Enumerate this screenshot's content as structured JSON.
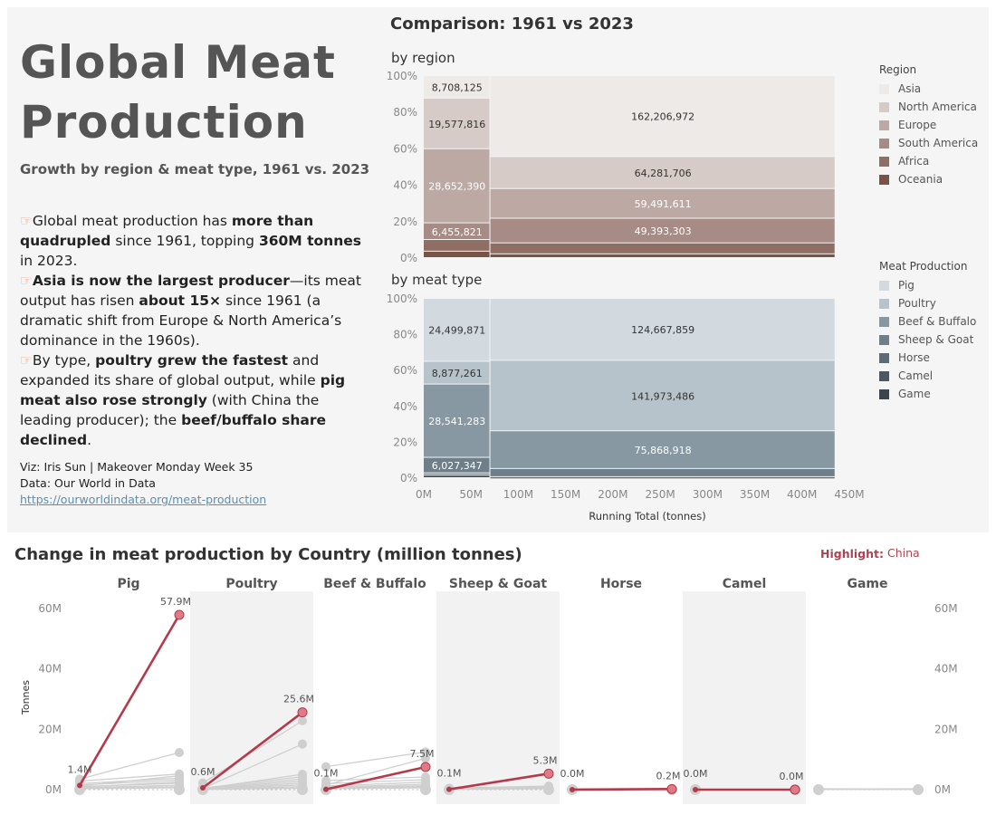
{
  "header": {
    "title": "Global Meat Production",
    "subtitle": "Growth by region & meat type, 1961 vs. 2023"
  },
  "narrative": {
    "p1": {
      "a": "Global meat production has ",
      "b": "more than quadrupled",
      "c": " since 1961, topping ",
      "d": "360M tonnes",
      "e": " in 2023."
    },
    "p2": {
      "a": "Asia is now the largest producer",
      "b": "—its meat output has risen ",
      "c": "about 15×",
      "d": " since 1961 (a dramatic shift from Europe & North America’s dominance in the 1960s)."
    },
    "p3": {
      "a": "By type, ",
      "b": "poultry grew the fastest",
      "c": " and expanded its share of global output, while ",
      "d": "pig meat also rose strongly",
      "e": " (with China the leading producer); the ",
      "f": "beef/buffalo share declined",
      "g": "."
    }
  },
  "credits": {
    "viz": "Viz: Iris Sun | Makeover Monday Week 35",
    "data": "Data: Our World in Data",
    "link": "https://ourworldindata.org/meat-production"
  },
  "comparison": {
    "title": "Comparison: 1961 vs 2023",
    "region_title": "by region",
    "meat_title": "by meat type",
    "x_label": "Running Total (tonnes)",
    "x_ticks": [
      "0M",
      "50M",
      "100M",
      "150M",
      "200M",
      "250M",
      "300M",
      "350M",
      "400M",
      "450M"
    ],
    "y_ticks": [
      "0%",
      "20%",
      "40%",
      "60%",
      "80%",
      "100%"
    ]
  },
  "legend_region": {
    "title": "Region",
    "items": [
      {
        "label": "Asia",
        "color": "#eeeae7"
      },
      {
        "label": "North America",
        "color": "#d7cbc7"
      },
      {
        "label": "Europe",
        "color": "#bda9a3"
      },
      {
        "label": "South America",
        "color": "#a68c84"
      },
      {
        "label": "Africa",
        "color": "#8f6e64"
      },
      {
        "label": "Oceania",
        "color": "#785448"
      }
    ]
  },
  "legend_meat": {
    "title": "Meat Production",
    "items": [
      {
        "label": "Pig",
        "color": "#d2dadf"
      },
      {
        "label": "Poultry",
        "color": "#b6c3cb"
      },
      {
        "label": "Beef & Buffalo",
        "color": "#8798a2"
      },
      {
        "label": "Sheep & Goat",
        "color": "#6e7f89"
      },
      {
        "label": "Horse",
        "color": "#5c6b75"
      },
      {
        "label": "Camel",
        "color": "#4b5861"
      },
      {
        "label": "Game",
        "color": "#3a454c"
      }
    ]
  },
  "bottom": {
    "title": "Change in meat production by Country (million tonnes)",
    "highlight_label": "Highlight:",
    "highlight_value": "China",
    "y_label": "Tonnes",
    "y_ticks": [
      "0M",
      "20M",
      "40M",
      "60M"
    ],
    "colors": {
      "highlight": "#b5394a",
      "other": "#cfcfcf",
      "panel_shade": "#f2f2f2"
    }
  },
  "chart_data": [
    {
      "type": "bar",
      "subtype": "marimekko",
      "title": "by region",
      "x_unit": "tonnes",
      "x_range": [
        0,
        450000000
      ],
      "y_range": [
        0,
        1
      ],
      "columns": [
        {
          "label": "1961",
          "total": 70400000,
          "segments": [
            {
              "name": "Asia",
              "value": 8708125,
              "label": "8,708,125"
            },
            {
              "name": "North America",
              "value": 19577816,
              "label": "19,577,816"
            },
            {
              "name": "Europe",
              "value": 28652390,
              "label": "28,652,390"
            },
            {
              "name": "South America",
              "value": 6455821,
              "label": "6,455,821"
            },
            {
              "name": "Africa",
              "value": 4500000,
              "label": ""
            },
            {
              "name": "Oceania",
              "value": 2500000,
              "label": ""
            }
          ]
        },
        {
          "label": "2023",
          "total": 365000000,
          "segments": [
            {
              "name": "Asia",
              "value": 162206972,
              "label": "162,206,972"
            },
            {
              "name": "North America",
              "value": 64281706,
              "label": "64,281,706"
            },
            {
              "name": "Europe",
              "value": 59491611,
              "label": "59,491,611"
            },
            {
              "name": "South America",
              "value": 49393303,
              "label": "49,393,303"
            },
            {
              "name": "Africa",
              "value": 22000000,
              "label": ""
            },
            {
              "name": "Oceania",
              "value": 7600000,
              "label": ""
            }
          ]
        }
      ]
    },
    {
      "type": "bar",
      "subtype": "marimekko",
      "title": "by meat type",
      "x_unit": "tonnes",
      "x_range": [
        0,
        450000000
      ],
      "y_range": [
        0,
        1
      ],
      "columns": [
        {
          "label": "1961",
          "total": 70400000,
          "segments": [
            {
              "name": "Pig",
              "value": 24499871,
              "label": "24,499,871"
            },
            {
              "name": "Poultry",
              "value": 8877261,
              "label": "8,877,261"
            },
            {
              "name": "Beef & Buffalo",
              "value": 28541283,
              "label": "28,541,283"
            },
            {
              "name": "Sheep & Goat",
              "value": 6027347,
              "label": "6,027,347"
            },
            {
              "name": "Horse",
              "value": 700000,
              "label": ""
            },
            {
              "name": "Camel",
              "value": 300000,
              "label": ""
            },
            {
              "name": "Game",
              "value": 900000,
              "label": ""
            }
          ]
        },
        {
          "label": "2023",
          "total": 365000000,
          "segments": [
            {
              "name": "Pig",
              "value": 124667859,
              "label": "124,667,859"
            },
            {
              "name": "Poultry",
              "value": 141973486,
              "label": "141,973,486"
            },
            {
              "name": "Beef & Buffalo",
              "value": 75868918,
              "label": "75,868,918"
            },
            {
              "name": "Sheep & Goat",
              "value": 16500000,
              "label": ""
            },
            {
              "name": "Horse",
              "value": 800000,
              "label": ""
            },
            {
              "name": "Camel",
              "value": 700000,
              "label": ""
            },
            {
              "name": "Game",
              "value": 500000,
              "label": ""
            }
          ]
        }
      ]
    },
    {
      "type": "line",
      "subtype": "slope",
      "title": "Change in meat production by Country (million tonnes)",
      "x": [
        "1961",
        "2023"
      ],
      "ylabel": "Tonnes",
      "ylim": [
        0,
        65
      ],
      "y_unit": "million tonnes",
      "panels": [
        {
          "name": "Pig",
          "highlight": {
            "country": "China",
            "start": 1.4,
            "end": 57.9,
            "start_label": "1.4M",
            "end_label": "57.9M"
          },
          "others": [
            [
              3.5,
              12.3
            ],
            [
              2.8,
              5.2
            ],
            [
              1.2,
              4.6
            ],
            [
              2.0,
              3.8
            ],
            [
              1.5,
              3.2
            ],
            [
              0.8,
              2.6
            ],
            [
              1.0,
              2.1
            ],
            [
              0.6,
              1.5
            ],
            [
              0.4,
              1.0
            ],
            [
              0.3,
              0.6
            ]
          ]
        },
        {
          "name": "Poultry",
          "highlight": {
            "country": "China",
            "start": 0.6,
            "end": 25.6,
            "start_label": "0.6M",
            "end_label": "25.6M"
          },
          "others": [
            [
              2.2,
              22.8
            ],
            [
              0.4,
              15.1
            ],
            [
              0.3,
              5.1
            ],
            [
              0.5,
              4.3
            ],
            [
              0.3,
              3.6
            ],
            [
              0.2,
              2.9
            ],
            [
              0.2,
              2.2
            ],
            [
              0.1,
              1.6
            ],
            [
              0.1,
              1.0
            ],
            [
              0.1,
              0.5
            ]
          ]
        },
        {
          "name": "Beef & Buffalo",
          "highlight": {
            "country": "China",
            "start": 0.1,
            "end": 7.5,
            "start_label": "0.1M",
            "end_label": "7.5M"
          },
          "others": [
            [
              7.6,
              12.5
            ],
            [
              1.5,
              10.4
            ],
            [
              3.0,
              4.2
            ],
            [
              2.0,
              3.3
            ],
            [
              1.2,
              2.5
            ],
            [
              0.8,
              1.8
            ],
            [
              0.6,
              1.3
            ],
            [
              0.4,
              0.9
            ],
            [
              0.3,
              0.6
            ]
          ]
        },
        {
          "name": "Sheep & Goat",
          "highlight": {
            "country": "China",
            "start": 0.1,
            "end": 5.3,
            "start_label": "0.1M",
            "end_label": "5.3M"
          },
          "others": [
            [
              0.5,
              1.2
            ],
            [
              0.3,
              0.9
            ],
            [
              0.4,
              0.7
            ],
            [
              0.2,
              0.5
            ],
            [
              0.2,
              0.4
            ],
            [
              0.1,
              0.3
            ]
          ]
        },
        {
          "name": "Horse",
          "highlight": {
            "country": "China",
            "start": 0.0,
            "end": 0.2,
            "start_label": "0.0M",
            "end_label": "0.2M"
          },
          "others": [
            [
              0.1,
              0.1
            ],
            [
              0.05,
              0.1
            ]
          ]
        },
        {
          "name": "Camel",
          "highlight": {
            "country": "China",
            "start": 0.0,
            "end": 0.0,
            "start_label": "0.0M",
            "end_label": "0.0M"
          },
          "others": [
            [
              0.05,
              0.1
            ]
          ]
        },
        {
          "name": "Game",
          "highlight": null,
          "others": [
            [
              0.3,
              0.2
            ],
            [
              0.2,
              0.3
            ],
            [
              0.1,
              0.1
            ]
          ]
        }
      ]
    }
  ]
}
